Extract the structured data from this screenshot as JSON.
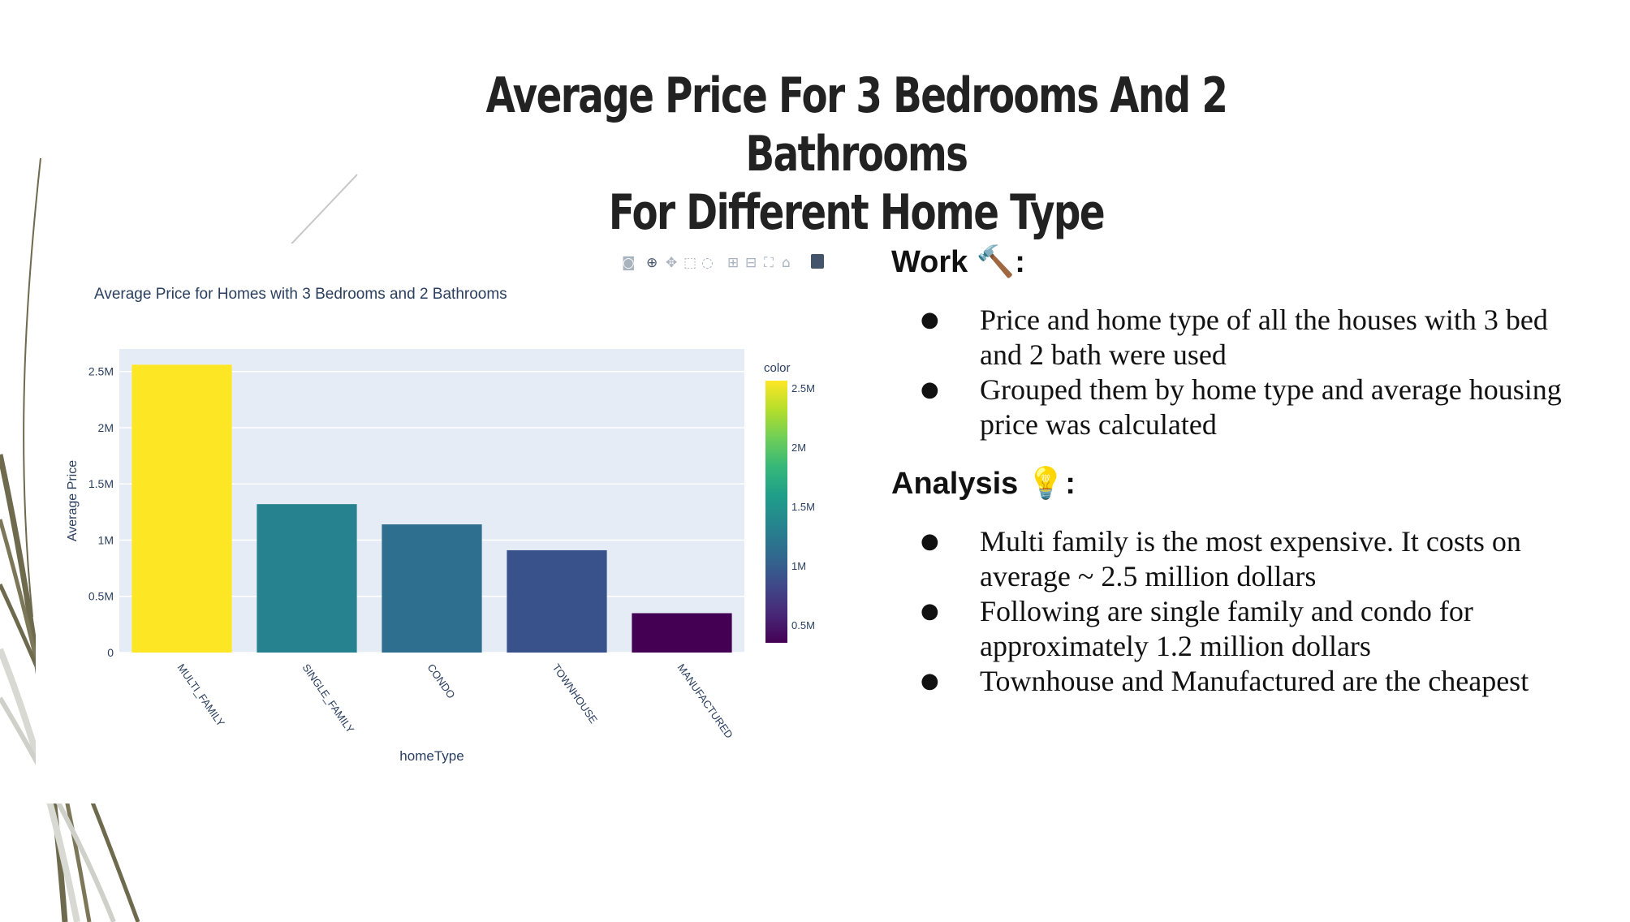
{
  "slide": {
    "title_line1": "Average Price For 3 Bedrooms And 2 Bathrooms",
    "title_line2": "For Different Home Type"
  },
  "work": {
    "heading": "Work",
    "emoji": "🔨",
    "bullets": [
      "Price and home type of all the houses with 3 bed and 2 bath were used",
      "Grouped them by home type and average housing price was calculated"
    ]
  },
  "analysis": {
    "heading": "Analysis",
    "emoji": "💡",
    "bullets": [
      "Multi family is the most expensive. It costs on average ~ 2.5 million dollars",
      "Following are single family and condo for approximately 1.2 million dollars",
      "Townhouse and Manufactured are the cheapest"
    ]
  },
  "toolbar": {
    "icons": [
      "camera-icon",
      "zoom-icon",
      "pan-icon",
      "box-select-icon",
      "lasso-select-icon",
      "zoom-in-icon",
      "zoom-out-icon",
      "autoscale-icon",
      "reset-axes-icon",
      "plotly-logo-icon"
    ]
  },
  "chart_data": {
    "type": "bar",
    "title": "Average Price for Homes with 3 Bedrooms and 2 Bathrooms",
    "xlabel": "homeType",
    "ylabel": "Average Price",
    "categories": [
      "MULTI_FAMILY",
      "SINGLE_FAMILY",
      "CONDO",
      "TOWNHOUSE",
      "MANUFACTURED"
    ],
    "values": [
      2560000,
      1320000,
      1140000,
      910000,
      350000
    ],
    "ylim": [
      0,
      2700000
    ],
    "y_ticks": [
      0,
      500000,
      1000000,
      1500000,
      2000000,
      2500000
    ],
    "y_tick_labels": [
      "0",
      "0.5M",
      "1M",
      "1.5M",
      "2M",
      "2.5M"
    ],
    "colorbar": {
      "title": "color",
      "ticks": [
        500000,
        1000000,
        1500000,
        2000000,
        2500000
      ],
      "tick_labels": [
        "0.5M",
        "1M",
        "1.5M",
        "2M",
        "2.5M"
      ],
      "range": [
        350000,
        2560000
      ],
      "colorscale": "viridis"
    },
    "grid": true,
    "plot_bg": "#e5ecf6"
  }
}
